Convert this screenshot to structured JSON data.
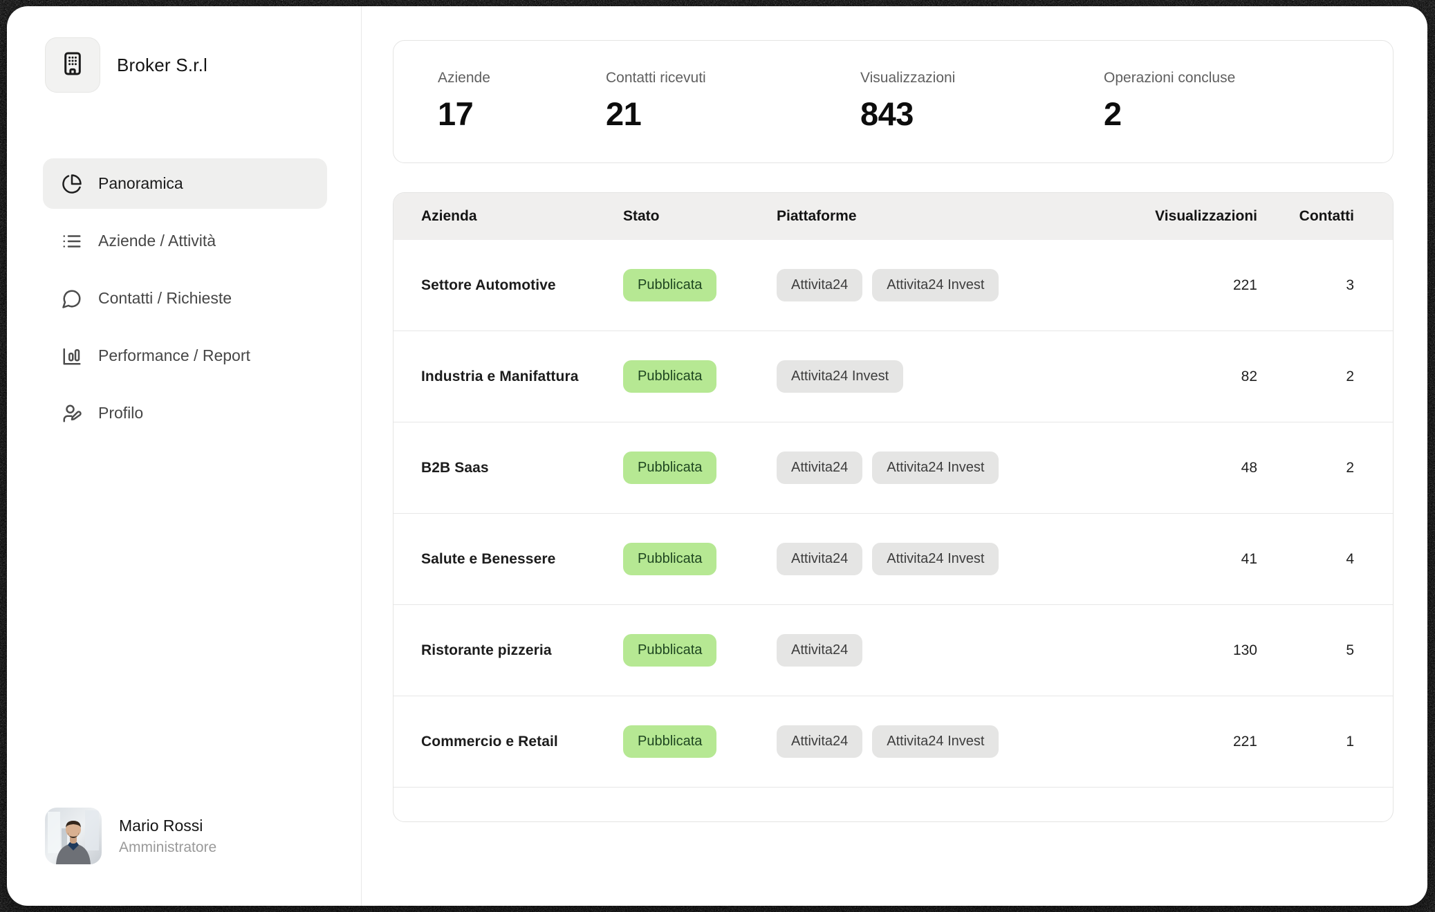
{
  "sidebar": {
    "brand_name": "Broker S.r.l",
    "items": [
      {
        "label": "Panoramica",
        "icon": "pie-chart-icon",
        "active": true
      },
      {
        "label": "Aziende / Attività",
        "icon": "list-icon",
        "active": false
      },
      {
        "label": "Contatti / Richieste",
        "icon": "chat-bubble-icon",
        "active": false
      },
      {
        "label": "Performance / Report",
        "icon": "bar-chart-icon",
        "active": false
      },
      {
        "label": "Profilo",
        "icon": "user-pen-icon",
        "active": false
      }
    ],
    "user": {
      "name": "Mario Rossi",
      "role": "Amministratore"
    }
  },
  "stats": [
    {
      "label": "Aziende",
      "value": "17"
    },
    {
      "label": "Contatti ricevuti",
      "value": "21"
    },
    {
      "label": "Visualizzazioni",
      "value": "843"
    },
    {
      "label": "Operazioni concluse",
      "value": "2"
    }
  ],
  "table": {
    "columns": [
      "Azienda",
      "Stato",
      "Piattaforme",
      "Visualizzazioni",
      "Contatti"
    ],
    "rows": [
      {
        "azienda": "Settore Automotive",
        "stato": "Pubblicata",
        "piattaforme": [
          "Attivita24",
          "Attivita24 Invest"
        ],
        "visualizzazioni": "221",
        "contatti": "3"
      },
      {
        "azienda": "Industria e Manifattura",
        "stato": "Pubblicata",
        "piattaforme": [
          "Attivita24 Invest"
        ],
        "visualizzazioni": "82",
        "contatti": "2"
      },
      {
        "azienda": "B2B Saas",
        "stato": "Pubblicata",
        "piattaforme": [
          "Attivita24",
          "Attivita24 Invest"
        ],
        "visualizzazioni": "48",
        "contatti": "2"
      },
      {
        "azienda": "Salute e Benessere",
        "stato": "Pubblicata",
        "piattaforme": [
          "Attivita24",
          "Attivita24 Invest"
        ],
        "visualizzazioni": "41",
        "contatti": "4"
      },
      {
        "azienda": "Ristorante pizzeria",
        "stato": "Pubblicata",
        "piattaforme": [
          "Attivita24"
        ],
        "visualizzazioni": "130",
        "contatti": "5"
      },
      {
        "azienda": "Commercio e Retail",
        "stato": "Pubblicata",
        "piattaforme": [
          "Attivita24",
          "Attivita24 Invest"
        ],
        "visualizzazioni": "221",
        "contatti": "1"
      }
    ]
  },
  "colors": {
    "status_published_bg": "#b6e893",
    "status_published_text": "#1e4620",
    "platform_badge_bg": "#e5e5e4",
    "table_header_bg": "#f0efee",
    "active_nav_bg": "#efefee",
    "frame_noise_bg": "#0b0b0b"
  }
}
